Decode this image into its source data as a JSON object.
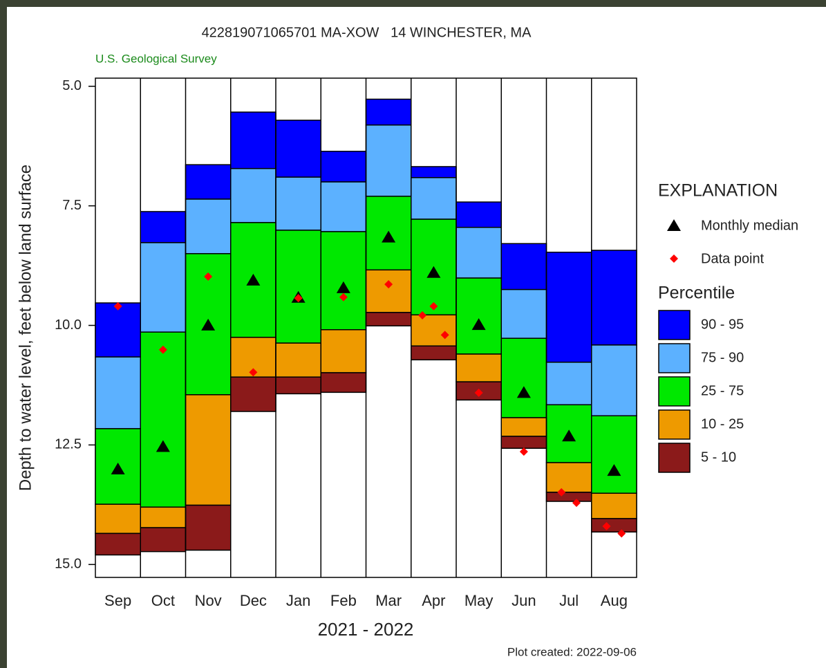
{
  "chart_data": {
    "type": "percentile_bars",
    "title": "422819071065701 MA-XOW   14 WINCHESTER, MA",
    "subtitle": "U.S. Geological Survey",
    "y_label": "Depth to water level, feet below land surface",
    "x_label": "2021 - 2022",
    "footnote": "Plot created: 2022-09-06",
    "categories": [
      "Sep",
      "Oct",
      "Nov",
      "Dec",
      "Jan",
      "Feb",
      "Mar",
      "Apr",
      "May",
      "Jun",
      "Jul",
      "Aug"
    ],
    "ylim": [
      4.83,
      15.27
    ],
    "y_inverted": true,
    "yticks": [
      {
        "value": 5.0,
        "label": "5.0"
      },
      7.5,
      {
        "value": 10.0,
        "label": "10.0"
      },
      12.5,
      {
        "value": 15.0,
        "label": "15.0"
      }
    ],
    "legend_title": "EXPLANATION",
    "percentile_title": "Percentile",
    "series": [
      {
        "name": "90 - 95",
        "color": "#0000ff",
        "values": [
          [
            9.53,
            10.66
          ],
          [
            7.62,
            8.27
          ],
          [
            6.64,
            7.36
          ],
          [
            5.54,
            6.72
          ],
          [
            5.71,
            6.9
          ],
          [
            6.36,
            7.0
          ],
          [
            5.27,
            5.81
          ],
          [
            6.68,
            6.91
          ],
          [
            7.42,
            7.95
          ],
          [
            8.29,
            9.25
          ],
          [
            8.47,
            10.77
          ],
          [
            8.43,
            10.41
          ]
        ]
      },
      {
        "name": "75 - 90",
        "color": "#5cb1ff",
        "values": [
          [
            10.66,
            12.16
          ],
          [
            8.27,
            10.14
          ],
          [
            7.36,
            8.5
          ],
          [
            6.72,
            7.85
          ],
          [
            6.9,
            8.01
          ],
          [
            7.0,
            8.04
          ],
          [
            5.81,
            7.3
          ],
          [
            6.91,
            7.78
          ],
          [
            7.95,
            9.01
          ],
          [
            9.25,
            10.27
          ],
          [
            10.77,
            11.66
          ],
          [
            10.41,
            11.89
          ]
        ]
      },
      {
        "name": "25 - 75",
        "color": "#00e800",
        "values": [
          [
            12.16,
            13.74
          ],
          [
            10.14,
            13.8
          ],
          [
            8.5,
            11.45
          ],
          [
            7.85,
            10.25
          ],
          [
            8.01,
            10.37
          ],
          [
            8.04,
            10.09
          ],
          [
            7.3,
            8.84
          ],
          [
            7.78,
            9.78
          ],
          [
            9.01,
            10.6
          ],
          [
            10.27,
            11.93
          ],
          [
            11.66,
            12.87
          ],
          [
            11.89,
            13.51
          ]
        ]
      },
      {
        "name": "10 - 25",
        "color": "#ee9a00",
        "values": [
          [
            13.74,
            14.35
          ],
          [
            13.8,
            14.23
          ],
          [
            11.45,
            13.76
          ],
          [
            10.25,
            11.08
          ],
          [
            10.37,
            11.08
          ],
          [
            10.09,
            10.99
          ],
          [
            8.84,
            9.73
          ],
          [
            9.78,
            10.43
          ],
          [
            10.6,
            11.18
          ],
          [
            11.93,
            12.32
          ],
          [
            12.87,
            13.49
          ],
          [
            13.51,
            14.04
          ]
        ]
      },
      {
        "name": "5 - 10",
        "color": "#8b1a1a",
        "values": [
          [
            14.35,
            14.8
          ],
          [
            14.23,
            14.73
          ],
          [
            13.76,
            14.7
          ],
          [
            11.08,
            11.8
          ],
          [
            11.08,
            11.43
          ],
          [
            10.99,
            11.4
          ],
          [
            9.73,
            10.01
          ],
          [
            10.43,
            10.72
          ],
          [
            11.18,
            11.56
          ],
          [
            12.32,
            12.57
          ],
          [
            13.49,
            13.68
          ],
          [
            14.04,
            14.32
          ]
        ]
      }
    ],
    "median": {
      "name": "Monthly median",
      "color": "#000000",
      "values": [
        13.0,
        12.53,
        9.99,
        9.05,
        9.41,
        9.21,
        8.15,
        8.89,
        9.98,
        11.4,
        12.31,
        13.03
      ]
    },
    "data_points": {
      "name": "Data point",
      "color": "#ff0000",
      "values": [
        [
          9.6
        ],
        [
          10.51
        ],
        [
          8.98
        ],
        [
          10.98
        ],
        [
          9.43
        ],
        [
          9.41
        ],
        [
          9.14
        ],
        [
          9.79,
          9.6,
          10.2
        ],
        [
          11.41
        ],
        [
          12.64
        ],
        [
          13.49,
          13.71
        ],
        [
          14.2,
          14.35
        ]
      ]
    }
  }
}
